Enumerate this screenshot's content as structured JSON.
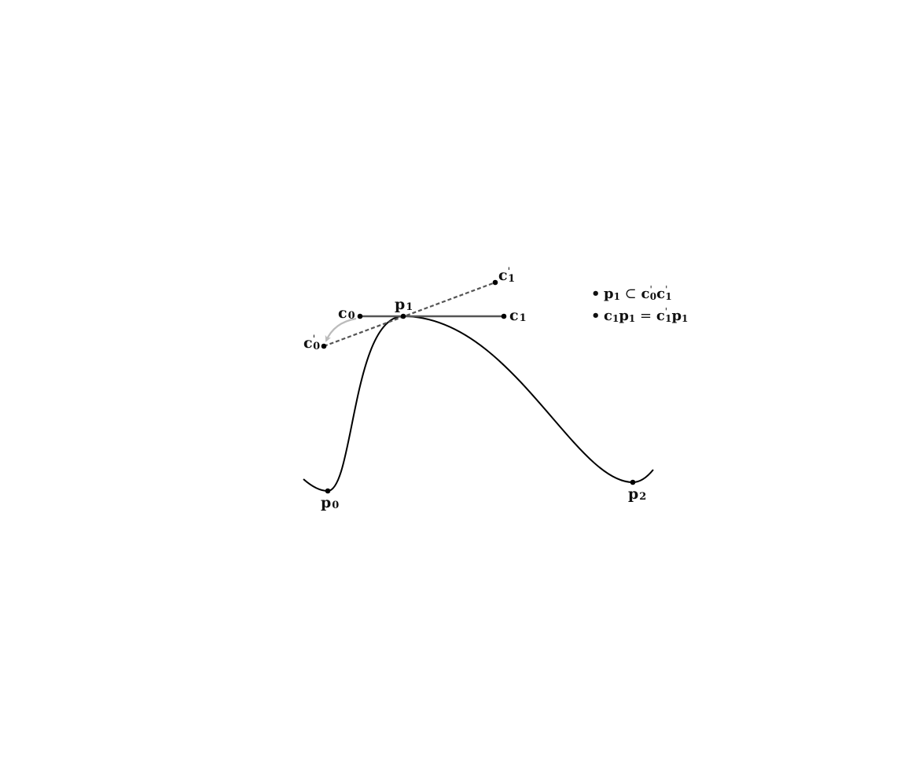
{
  "diagram": {
    "points": {
      "p0": {
        "base": "p",
        "sub": "0"
      },
      "p1": {
        "base": "p",
        "sub": "1"
      },
      "p2": {
        "base": "p",
        "sub": "2"
      },
      "c0": {
        "base": "c",
        "sub": "0"
      },
      "c1": {
        "base": "c",
        "sub": "1"
      },
      "c0_prime": {
        "base": "c",
        "prime": "'",
        "sub": "0"
      },
      "c1_prime": {
        "base": "c",
        "prime": "'",
        "sub": "1"
      }
    },
    "notes": [
      {
        "bullet": "•",
        "parts": [
          {
            "t": "p",
            "k": "b"
          },
          {
            "t": "1",
            "k": "sub"
          },
          {
            "t": " ⊂ ",
            "k": "op"
          },
          {
            "t": "c",
            "k": "b"
          },
          {
            "t": "'",
            "k": "prime"
          },
          {
            "t": "0",
            "k": "sub"
          },
          {
            "t": "c",
            "k": "b"
          },
          {
            "t": "'",
            "k": "prime"
          },
          {
            "t": "1",
            "k": "sub"
          }
        ]
      },
      {
        "bullet": "•",
        "parts": [
          {
            "t": "c",
            "k": "b"
          },
          {
            "t": "1",
            "k": "sub"
          },
          {
            "t": "p",
            "k": "b"
          },
          {
            "t": "1",
            "k": "sub"
          },
          {
            "t": " = ",
            "k": "op"
          },
          {
            "t": "c",
            "k": "b"
          },
          {
            "t": "'",
            "k": "prime"
          },
          {
            "t": "1",
            "k": "sub"
          },
          {
            "t": "p",
            "k": "b"
          },
          {
            "t": "1",
            "k": "sub"
          }
        ]
      }
    ],
    "colors": {
      "curve": "#000000",
      "handle": "#555555",
      "dashed_handle": "#555555",
      "rotation_arrow": "#bbbbbb",
      "point": "#000000"
    }
  }
}
